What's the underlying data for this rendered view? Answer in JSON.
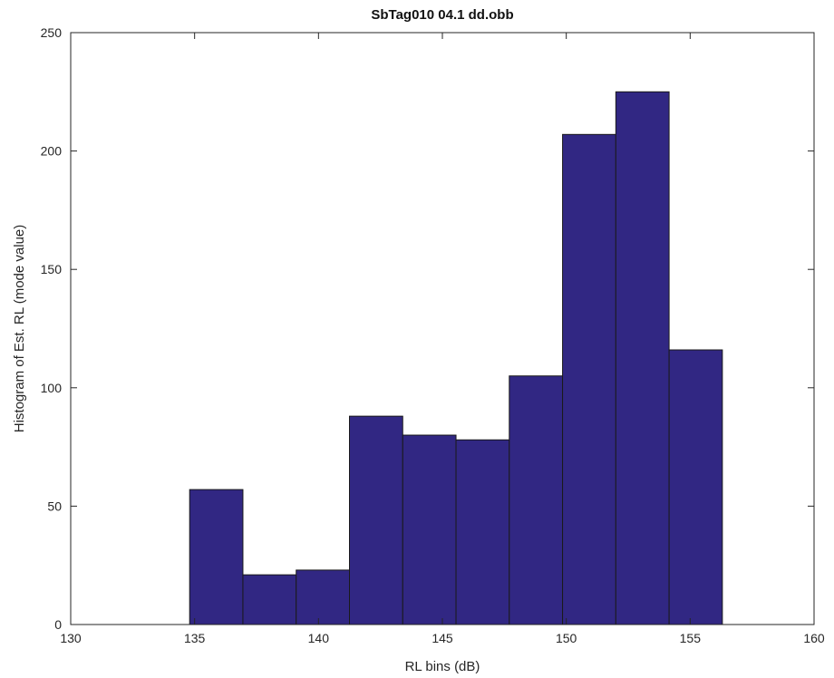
{
  "chart_data": {
    "type": "bar",
    "title": "SbTag010   04.1 dd.obb",
    "xlabel": "RL bins (dB)",
    "ylabel": "Histogram of Est. RL (mode value)",
    "xlim": [
      130,
      160
    ],
    "ylim": [
      0,
      250
    ],
    "xticks": [
      130,
      135,
      140,
      145,
      150,
      155,
      160
    ],
    "yticks": [
      0,
      50,
      100,
      150,
      200,
      250
    ],
    "bin_edges": [
      134.8,
      136.95,
      139.1,
      141.25,
      143.4,
      145.55,
      147.7,
      149.85,
      152.0,
      154.15,
      156.3
    ],
    "values": [
      57,
      21,
      23,
      88,
      80,
      78,
      105,
      207,
      225,
      116
    ],
    "bar_color": "#312783",
    "edge_color": "#1a1a1a",
    "grid": false
  }
}
